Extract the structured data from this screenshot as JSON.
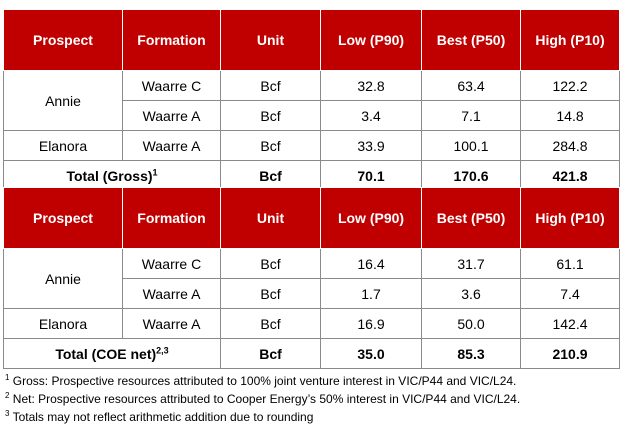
{
  "headers": {
    "prospect": "Prospect",
    "formation": "Formation",
    "unit": "Unit",
    "low": "Low (P90)",
    "best": "Best (P50)",
    "high": "High (P10)"
  },
  "gross": {
    "rows": [
      {
        "prospect": "Annie",
        "formation": "Waarre C",
        "unit": "Bcf",
        "low": "32.8",
        "best": "63.4",
        "high": "122.2"
      },
      {
        "formation": "Waarre A",
        "unit": "Bcf",
        "low": "3.4",
        "best": "7.1",
        "high": "14.8"
      },
      {
        "prospect": "Elanora",
        "formation": "Waarre A",
        "unit": "Bcf",
        "low": "33.9",
        "best": "100.1",
        "high": "284.8"
      }
    ],
    "total": {
      "label": "Total (Gross)",
      "sup": "1",
      "unit": "Bcf",
      "low": "70.1",
      "best": "170.6",
      "high": "421.8"
    }
  },
  "coe": {
    "rows": [
      {
        "prospect": "Annie",
        "formation": "Waarre C",
        "unit": "Bcf",
        "low": "16.4",
        "best": "31.7",
        "high": "61.1"
      },
      {
        "formation": "Waarre A",
        "unit": "Bcf",
        "low": "1.7",
        "best": "3.6",
        "high": "7.4"
      },
      {
        "prospect": "Elanora",
        "formation": "Waarre A",
        "unit": "Bcf",
        "low": "16.9",
        "best": "50.0",
        "high": "142.4"
      }
    ],
    "total": {
      "label": "Total (COE net)",
      "sup": "2,3",
      "unit": "Bcf",
      "low": "35.0",
      "best": "85.3",
      "high": "210.9"
    }
  },
  "footnotes": [
    {
      "mark": "1",
      "text": " Gross: Prospective resources attributed to 100% joint venture interest in VIC/P44 and VIC/L24."
    },
    {
      "mark": "2",
      "text": " Net: Prospective resources attributed to Cooper Energy’s 50% interest in VIC/P44 and VIC/L24."
    },
    {
      "mark": "3",
      "text": " Totals may not reflect arithmetic addition due to rounding"
    }
  ],
  "colors": {
    "header_bg": "#c00000",
    "header_text": "#ffffff",
    "grid": "#8a8a8a"
  }
}
